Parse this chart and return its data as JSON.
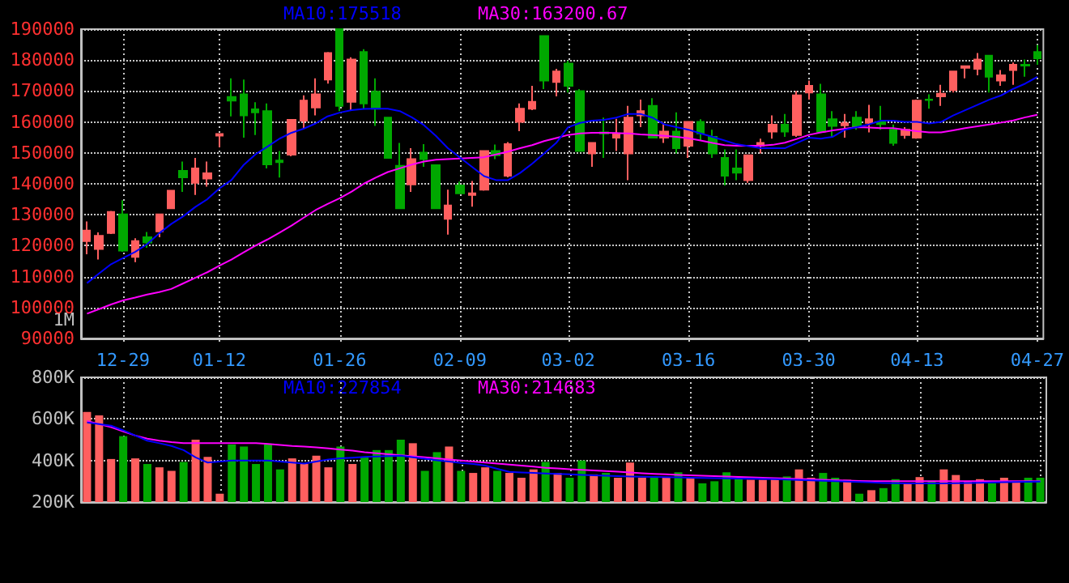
{
  "chart_data": [
    {
      "type": "candlestick",
      "categories": [
        null,
        null,
        null,
        "12-29",
        null,
        null,
        null,
        null,
        null,
        null,
        null,
        "01-12",
        null,
        null,
        null,
        null,
        null,
        null,
        null,
        null,
        null,
        "01-26",
        null,
        null,
        null,
        null,
        null,
        null,
        null,
        null,
        null,
        "02-09",
        null,
        null,
        null,
        null,
        null,
        null,
        null,
        null,
        "03-02",
        null,
        null,
        null,
        null,
        null,
        null,
        null,
        null,
        null,
        "03-16",
        null,
        null,
        null,
        null,
        null,
        null,
        null,
        null,
        null,
        "03-30",
        null,
        null,
        null,
        null,
        null,
        null,
        null,
        null,
        "04-13",
        null,
        null,
        null,
        null,
        null,
        null,
        null,
        null,
        null,
        "04-27"
      ],
      "ylim": [
        90000,
        190000
      ],
      "yticks": [
        90000,
        100000,
        110000,
        120000,
        130000,
        140000,
        150000,
        160000,
        170000,
        180000,
        190000
      ],
      "grid": true,
      "annotations": [
        "1M"
      ],
      "ohlc": [
        [
          121500,
          127800,
          117200,
          124900
        ],
        [
          118900,
          124300,
          115500,
          123200
        ],
        [
          124100,
          131200,
          123800,
          130900
        ],
        [
          130100,
          134700,
          118000,
          118400
        ],
        [
          116400,
          122400,
          114700,
          121500
        ],
        [
          122700,
          124400,
          119300,
          121000
        ],
        [
          124600,
          130100,
          122700,
          130100
        ],
        [
          132100,
          137800,
          131800,
          137800
        ],
        [
          144200,
          147200,
          137400,
          142100
        ],
        [
          140300,
          148400,
          136400,
          145000
        ],
        [
          141700,
          147200,
          139100,
          143400
        ],
        [
          155600,
          156100,
          151800,
          156100
        ],
        [
          168100,
          174100,
          161800,
          166900
        ],
        [
          168900,
          173700,
          154900,
          162100
        ],
        [
          164100,
          166400,
          155800,
          163100
        ],
        [
          163500,
          166000,
          145000,
          146300
        ],
        [
          147500,
          150600,
          142000,
          147000
        ],
        [
          149400,
          160700,
          148900,
          160700
        ],
        [
          160400,
          168600,
          157800,
          166900
        ],
        [
          164700,
          174100,
          162100,
          168900
        ],
        [
          173700,
          182600,
          172400,
          182300
        ],
        [
          190000,
          190000,
          163500,
          165200
        ],
        [
          166500,
          180900,
          163800,
          180200
        ],
        [
          182600,
          183500,
          164300,
          166000
        ],
        [
          169800,
          174100,
          158700,
          164300
        ],
        [
          161400,
          161400,
          148400,
          148400
        ],
        [
          145800,
          153200,
          132100,
          132100
        ],
        [
          139800,
          151500,
          137400,
          148000
        ],
        [
          150100,
          152800,
          145500,
          148000
        ],
        [
          146000,
          146000,
          131800,
          132100
        ],
        [
          128700,
          138100,
          123600,
          133000
        ],
        [
          139500,
          140700,
          136900,
          136900
        ],
        [
          136400,
          140900,
          132600,
          136900
        ],
        [
          138100,
          150600,
          137800,
          150600
        ],
        [
          150600,
          152700,
          148000,
          149200
        ],
        [
          142600,
          153500,
          142100,
          152800
        ],
        [
          160000,
          166000,
          157000,
          164300
        ],
        [
          164300,
          171700,
          163800,
          166500
        ],
        [
          187800,
          187800,
          170600,
          173400
        ],
        [
          172900,
          177200,
          168300,
          176300
        ],
        [
          178900,
          179800,
          169500,
          171700
        ],
        [
          170000,
          170600,
          150600,
          150600
        ],
        [
          149800,
          153200,
          145500,
          153200
        ],
        [
          156600,
          161400,
          148400,
          156300
        ],
        [
          154900,
          161000,
          150600,
          156300
        ],
        [
          149800,
          165200,
          141200,
          161400
        ],
        [
          162100,
          167200,
          158300,
          163500
        ],
        [
          165200,
          167700,
          154900,
          154900
        ],
        [
          154900,
          159700,
          153200,
          156900
        ],
        [
          156900,
          163100,
          149800,
          151500
        ],
        [
          152300,
          160000,
          148400,
          160000
        ],
        [
          160000,
          160900,
          154100,
          156300
        ],
        [
          155200,
          157500,
          148400,
          149800
        ],
        [
          148400,
          151100,
          139500,
          142600
        ],
        [
          145000,
          151100,
          141200,
          143600
        ],
        [
          141200,
          149200,
          140300,
          149200
        ],
        [
          152300,
          154600,
          149800,
          153200
        ],
        [
          156900,
          162100,
          154600,
          159100
        ],
        [
          159100,
          162600,
          155200,
          156900
        ],
        [
          155800,
          170000,
          155200,
          168600
        ],
        [
          169500,
          173400,
          167200,
          171700
        ],
        [
          168900,
          172300,
          156900,
          156900
        ],
        [
          160900,
          163500,
          155200,
          158700
        ],
        [
          158900,
          162600,
          154900,
          159600
        ],
        [
          161400,
          163500,
          157500,
          158300
        ],
        [
          159700,
          165500,
          156600,
          160900
        ],
        [
          159900,
          165200,
          157500,
          159300
        ],
        [
          157500,
          159200,
          152300,
          153200
        ],
        [
          155800,
          158300,
          154600,
          157500
        ],
        [
          154900,
          167200,
          154600,
          166900
        ],
        [
          167200,
          168900,
          164300,
          167100
        ],
        [
          168300,
          172000,
          165200,
          169100
        ],
        [
          170300,
          176300,
          169500,
          176300
        ],
        [
          177500,
          178000,
          174100,
          178000
        ],
        [
          177200,
          182300,
          175100,
          180200
        ],
        [
          181400,
          181400,
          169500,
          174600
        ],
        [
          173400,
          176800,
          171700,
          175100
        ],
        [
          176800,
          179200,
          172000,
          178500
        ],
        [
          178500,
          180200,
          174600,
          178200
        ],
        [
          182600,
          184900,
          178500,
          180600
        ]
      ],
      "colors": [
        "#ff5f5f",
        "#ff5f5f",
        "#ff5f5f",
        "#00a800",
        "#ff5f5f",
        "#00a800",
        "#ff5f5f",
        "#ff5f5f",
        "#00a800",
        "#ff5f5f",
        "#ff5f5f",
        "#ff5f5f",
        "#00a800",
        "#00a800",
        "#00a800",
        "#00a800",
        "#00a800",
        "#ff5f5f",
        "#ff5f5f",
        "#ff5f5f",
        "#ff5f5f",
        "#00a800",
        "#ff5f5f",
        "#00a800",
        "#00a800",
        "#00a800",
        "#00a800",
        "#ff5f5f",
        "#00a800",
        "#00a800",
        "#ff5f5f",
        "#00a800",
        "#ff5f5f",
        "#ff5f5f",
        "#00a800",
        "#ff5f5f",
        "#ff5f5f",
        "#ff5f5f",
        "#00a800",
        "#ff5f5f",
        "#00a800",
        "#00a800",
        "#ff5f5f",
        "#00a800",
        "#ff5f5f",
        "#ff5f5f",
        "#ff5f5f",
        "#00a800",
        "#ff5f5f",
        "#00a800",
        "#ff5f5f",
        "#00a800",
        "#00a800",
        "#00a800",
        "#00a800",
        "#ff5f5f",
        "#ff5f5f",
        "#ff5f5f",
        "#00a800",
        "#ff5f5f",
        "#ff5f5f",
        "#00a800",
        "#00a800",
        "#ff5f5f",
        "#00a800",
        "#ff5f5f",
        "#00a800",
        "#00a800",
        "#ff5f5f",
        "#ff5f5f",
        "#00a800",
        "#ff5f5f",
        "#ff5f5f",
        "#ff5f5f",
        "#ff5f5f",
        "#00a800",
        "#ff5f5f",
        "#ff5f5f",
        "#00a800",
        "#00a800"
      ],
      "series": [
        {
          "type": "line",
          "name": "MA10:175518",
          "color": "#0000ff",
          "values": [
            107900,
            111000,
            114000,
            116000,
            118000,
            120500,
            124000,
            127000,
            129500,
            132500,
            135000,
            138500,
            141200,
            146000,
            149500,
            152000,
            154600,
            156500,
            157800,
            159500,
            161800,
            163000,
            163800,
            164200,
            164300,
            164300,
            163500,
            161500,
            159000,
            155500,
            151500,
            148500,
            145500,
            142500,
            141200,
            141200,
            143500,
            146500,
            149800,
            153200,
            158300,
            159700,
            160400,
            160700,
            161400,
            162600,
            162600,
            161400,
            159200,
            158300,
            157500,
            156300,
            155200,
            154000,
            152800,
            152200,
            151500,
            151500,
            151500,
            153200,
            154900,
            154600,
            155200,
            157500,
            158300,
            159200,
            160400,
            160400,
            160000,
            160000,
            159500,
            160000,
            162100,
            163800,
            165500,
            167200,
            168600,
            170700,
            172400,
            174600
          ]
        },
        {
          "type": "line",
          "name": "MA30:163200.67",
          "color": "#ff00ff",
          "values": [
            98000,
            99500,
            101000,
            102300,
            103200,
            104200,
            105000,
            106000,
            107800,
            109600,
            111400,
            113500,
            115500,
            117800,
            120000,
            122000,
            124200,
            126500,
            129000,
            131500,
            133500,
            135300,
            137500,
            140000,
            142000,
            143800,
            145000,
            146200,
            147200,
            147800,
            148000,
            148200,
            148400,
            148600,
            149500,
            150400,
            151500,
            152500,
            153800,
            154800,
            155800,
            156300,
            156500,
            156500,
            156400,
            156300,
            156000,
            155800,
            155500,
            155200,
            154700,
            154000,
            153200,
            152500,
            152300,
            152300,
            152300,
            152600,
            153300,
            154500,
            155800,
            156600,
            157300,
            157800,
            158300,
            158200,
            158000,
            158000,
            157500,
            157000,
            156600,
            156600,
            157300,
            158000,
            158600,
            159200,
            159800,
            160500,
            161500,
            162300
          ]
        }
      ]
    },
    {
      "type": "bar",
      "categories": [
        null,
        null,
        null,
        null,
        null,
        null,
        null,
        null,
        null,
        null,
        null,
        null,
        null,
        null,
        null,
        null,
        null,
        null,
        null,
        null,
        null,
        null,
        null,
        null,
        null,
        null,
        null,
        null,
        null,
        null,
        null,
        null,
        null,
        null,
        null,
        null,
        null,
        null,
        null,
        null,
        null,
        null,
        null,
        null,
        null,
        null,
        null,
        null,
        null,
        null,
        null,
        null,
        null,
        null,
        null,
        null,
        null,
        null,
        null,
        null,
        null,
        null,
        null,
        null,
        null,
        null,
        null,
        null,
        null,
        null,
        null,
        null,
        null,
        null,
        null,
        null,
        null,
        null,
        null,
        null
      ],
      "ylim": [
        200000,
        800000
      ],
      "yticks": [
        {
          "value": 200000,
          "label": "200K"
        },
        {
          "value": 400000,
          "label": "400K"
        },
        {
          "value": 600000,
          "label": "600K"
        },
        {
          "value": 800000,
          "label": "800K"
        }
      ],
      "grid": true,
      "tick_labels": "y",
      "values": [
        633000,
        617000,
        407000,
        517000,
        410000,
        383000,
        367000,
        350000,
        393000,
        500000,
        417000,
        240000,
        477000,
        467000,
        383000,
        477000,
        357000,
        410000,
        383000,
        423000,
        367000,
        467000,
        383000,
        417000,
        450000,
        450000,
        500000,
        483000,
        350000,
        440000,
        467000,
        350000,
        340000,
        367000,
        350000,
        340000,
        317000,
        357000,
        393000,
        340000,
        317000,
        400000,
        333000,
        340000,
        317000,
        390000,
        317000,
        323000,
        317000,
        343000,
        317000,
        290000,
        300000,
        343000,
        310000,
        307000,
        307000,
        317000,
        323000,
        357000,
        317000,
        340000,
        317000,
        307000,
        240000,
        257000,
        267000,
        310000,
        290000,
        320000,
        300000,
        357000,
        330000,
        300000,
        310000,
        290000,
        317000,
        300000,
        317000,
        317000
      ],
      "colors": [
        "#ff5f5f",
        "#ff5f5f",
        "#ff5f5f",
        "#00a800",
        "#ff5f5f",
        "#00a800",
        "#ff5f5f",
        "#ff5f5f",
        "#00a800",
        "#ff5f5f",
        "#ff5f5f",
        "#ff5f5f",
        "#00a800",
        "#00a800",
        "#00a800",
        "#00a800",
        "#00a800",
        "#ff5f5f",
        "#ff5f5f",
        "#ff5f5f",
        "#ff5f5f",
        "#00a800",
        "#ff5f5f",
        "#00a800",
        "#00a800",
        "#00a800",
        "#00a800",
        "#ff5f5f",
        "#00a800",
        "#00a800",
        "#ff5f5f",
        "#00a800",
        "#ff5f5f",
        "#ff5f5f",
        "#00a800",
        "#ff5f5f",
        "#ff5f5f",
        "#ff5f5f",
        "#00a800",
        "#ff5f5f",
        "#00a800",
        "#00a800",
        "#ff5f5f",
        "#00a800",
        "#ff5f5f",
        "#ff5f5f",
        "#ff5f5f",
        "#00a800",
        "#ff5f5f",
        "#00a800",
        "#ff5f5f",
        "#00a800",
        "#00a800",
        "#00a800",
        "#00a800",
        "#ff5f5f",
        "#ff5f5f",
        "#ff5f5f",
        "#00a800",
        "#ff5f5f",
        "#ff5f5f",
        "#00a800",
        "#00a800",
        "#ff5f5f",
        "#00a800",
        "#ff5f5f",
        "#00a800",
        "#00a800",
        "#ff5f5f",
        "#ff5f5f",
        "#00a800",
        "#ff5f5f",
        "#ff5f5f",
        "#ff5f5f",
        "#ff5f5f",
        "#00a800",
        "#ff5f5f",
        "#ff5f5f",
        "#00a800",
        "#00a800"
      ],
      "series": [
        {
          "type": "line",
          "name": "MA10:227854",
          "color": "#0000ff",
          "values": [
            583000,
            575000,
            567000,
            545000,
            520000,
            495000,
            483000,
            470000,
            450000,
            415000,
            390000,
            395000,
            400000,
            400000,
            400000,
            400000,
            395000,
            390000,
            385000,
            395000,
            405000,
            410000,
            413000,
            417000,
            419000,
            421000,
            423000,
            415000,
            408000,
            401000,
            395000,
            388000,
            383000,
            375000,
            360000,
            345000,
            342000,
            340000,
            337000,
            335000,
            333000,
            331000,
            329000,
            327000,
            325000,
            323000,
            322000,
            321000,
            320000,
            319000,
            317000,
            316000,
            315000,
            314000,
            313000,
            312000,
            311000,
            310000,
            308000,
            306000,
            304000,
            302000,
            300000,
            298000,
            296000,
            294000,
            292000,
            291000,
            290000,
            290000,
            290000,
            290000,
            291000,
            292000,
            293000,
            294000,
            295000,
            296000,
            297000,
            298000
          ]
        },
        {
          "type": "line",
          "name": "MA30:214683",
          "color": "#ff00ff",
          "values": [
            590000,
            575000,
            560000,
            540000,
            520000,
            505000,
            495000,
            488000,
            483000,
            483000,
            483000,
            483000,
            483000,
            483000,
            483000,
            480000,
            475000,
            470000,
            467000,
            463000,
            458000,
            452000,
            447000,
            440000,
            435000,
            430000,
            425000,
            420000,
            415000,
            410000,
            405000,
            400000,
            395000,
            390000,
            385000,
            380000,
            375000,
            370000,
            365000,
            362000,
            358000,
            355000,
            352000,
            349000,
            346000,
            342000,
            338000,
            335000,
            333000,
            331000,
            329000,
            327000,
            325000,
            323000,
            321000,
            319000,
            317000,
            315000,
            313000,
            311000,
            309000,
            307000,
            305000,
            303000,
            301000,
            300000,
            300000,
            300000,
            300000,
            300000,
            300000,
            300000,
            300000,
            300000,
            300000,
            300000,
            300000,
            300000,
            300000,
            300000
          ]
        }
      ]
    }
  ]
}
